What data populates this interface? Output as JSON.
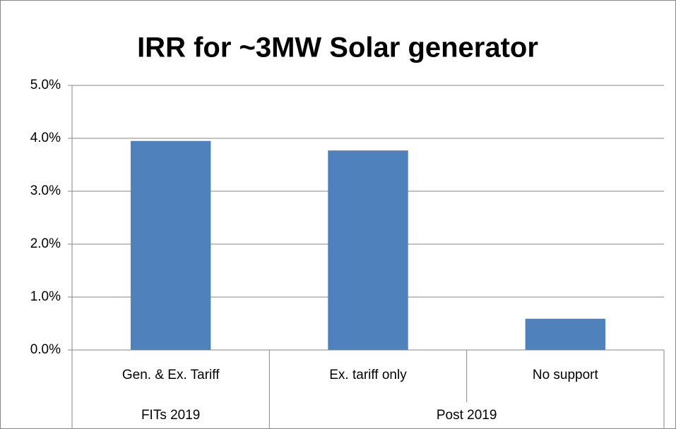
{
  "chart_data": {
    "type": "bar",
    "title": "IRR for ~3MW Solar generator",
    "categories": [
      "Gen. & Ex. Tariff",
      "Ex. tariff only",
      "No support"
    ],
    "values": [
      3.95,
      3.77,
      0.59
    ],
    "groups": [
      {
        "label": "FITs 2019",
        "count": 1
      },
      {
        "label": "Post 2019",
        "count": 2
      }
    ],
    "color": "#4f81bd",
    "ylim": [
      0,
      5
    ],
    "yticks": [
      {
        "value": 0,
        "label": "0.0%"
      },
      {
        "value": 1,
        "label": "1.0%"
      },
      {
        "value": 2,
        "label": "2.0%"
      },
      {
        "value": 3,
        "label": "3.0%"
      },
      {
        "value": 4,
        "label": "4.0%"
      },
      {
        "value": 5,
        "label": "5.0%"
      }
    ],
    "grid": true
  }
}
